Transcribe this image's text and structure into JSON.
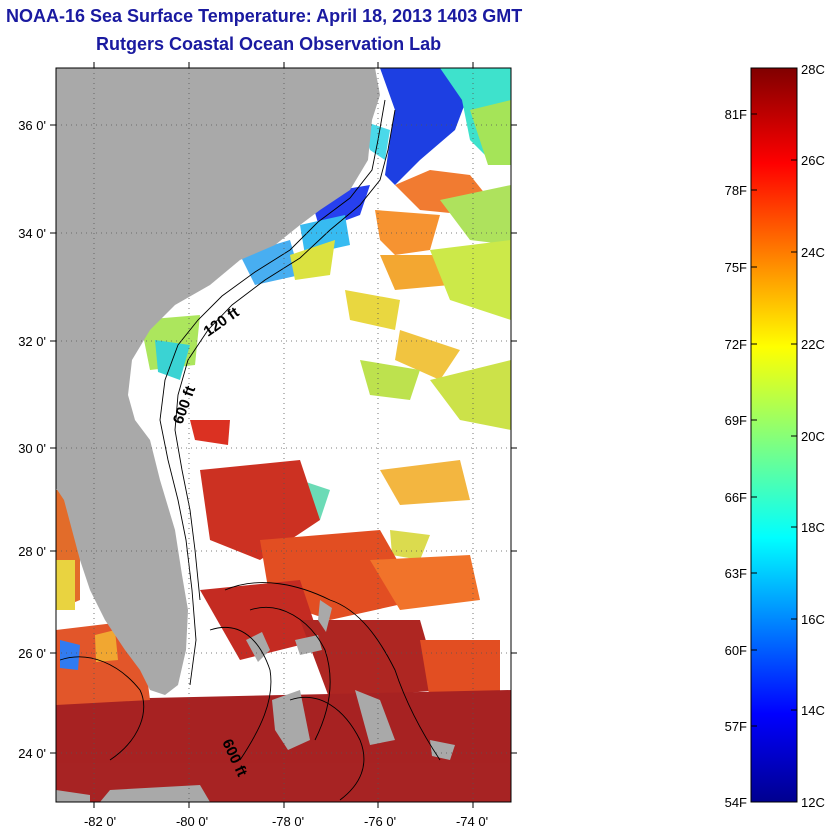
{
  "title": "NOAA-16 Sea Surface Temperature:  April 18, 2013 1403 GMT",
  "subtitle": "Rutgers Coastal Ocean Observation Lab",
  "map": {
    "lon_ticks": [
      "-82 0'",
      "-80 0'",
      "-78 0'",
      "-76 0'",
      "-74 0'"
    ],
    "lat_ticks": [
      "36 0'",
      "34 0'",
      "32 0'",
      "30 0'",
      "28 0'",
      "26 0'",
      "24 0'"
    ],
    "contour_labels": [
      "120 ft",
      "600 ft",
      "600 ft"
    ],
    "land_color": "#a9a9a9",
    "ocean_no_data_color": "#ffffff"
  },
  "colorbar": {
    "celsius_labels": [
      "28C",
      "26C",
      "24C",
      "22C",
      "20C",
      "18C",
      "16C",
      "14C",
      "12C"
    ],
    "fahrenheit_labels": [
      "81F",
      "78F",
      "75F",
      "72F",
      "69F",
      "66F",
      "63F",
      "60F",
      "57F",
      "54F"
    ],
    "range_c": [
      12,
      28
    ],
    "colormap": "jet"
  }
}
